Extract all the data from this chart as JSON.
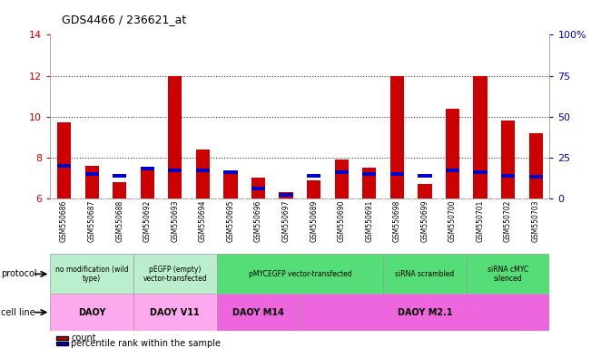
{
  "title": "GDS4466 / 236621_at",
  "samples": [
    "GSM550686",
    "GSM550687",
    "GSM550688",
    "GSM550692",
    "GSM550693",
    "GSM550694",
    "GSM550695",
    "GSM550696",
    "GSM550697",
    "GSM550689",
    "GSM550690",
    "GSM550691",
    "GSM550698",
    "GSM550699",
    "GSM550700",
    "GSM550701",
    "GSM550702",
    "GSM550703"
  ],
  "counts": [
    9.7,
    7.6,
    6.8,
    7.5,
    12.0,
    8.4,
    7.2,
    7.0,
    6.3,
    6.9,
    7.9,
    7.5,
    12.0,
    6.7,
    10.4,
    12.0,
    9.8,
    9.2
  ],
  "percentiles": [
    20,
    15,
    14,
    18,
    17,
    17,
    16,
    6,
    2,
    14,
    16,
    15,
    15,
    14,
    17,
    16,
    14,
    13
  ],
  "ylim_left": [
    6,
    14
  ],
  "ylim_right": [
    0,
    100
  ],
  "bar_color": "#cc0000",
  "pct_color": "#0000cc",
  "grid_color": "#333333",
  "protocol_groups": [
    {
      "label": "no modification (wild\ntype)",
      "start": 0,
      "end": 3,
      "color": "#bbeecc"
    },
    {
      "label": "pEGFP (empty)\nvector-transfected",
      "start": 3,
      "end": 6,
      "color": "#bbeecc"
    },
    {
      "label": "pMYCEGFP vector-transfected",
      "start": 6,
      "end": 12,
      "color": "#55dd77"
    },
    {
      "label": "siRNA scrambled",
      "start": 12,
      "end": 15,
      "color": "#55dd77"
    },
    {
      "label": "siRNA cMYC\nsilenced",
      "start": 15,
      "end": 18,
      "color": "#55dd77"
    }
  ],
  "cellline_groups": [
    {
      "label": "DAOY",
      "start": 0,
      "end": 3,
      "color": "#ffaaee"
    },
    {
      "label": "DAOY V11",
      "start": 3,
      "end": 6,
      "color": "#ffaaee"
    },
    {
      "label": "DAOY M14",
      "start": 6,
      "end": 9,
      "color": "#ee66dd"
    },
    {
      "label": "DAOY M2.1",
      "start": 9,
      "end": 18,
      "color": "#ee66dd"
    }
  ],
  "legend_count_label": "count",
  "legend_pct_label": "percentile rank within the sample",
  "left_axis_color": "#cc0000",
  "right_axis_color": "#0000cc",
  "right_ticks": [
    0,
    25,
    50,
    75,
    100
  ],
  "right_tick_labels": [
    "0",
    "25",
    "50",
    "75",
    "100%"
  ],
  "left_ticks": [
    6,
    8,
    10,
    12,
    14
  ],
  "xtick_bg_color": "#cccccc",
  "bar_width": 0.5
}
